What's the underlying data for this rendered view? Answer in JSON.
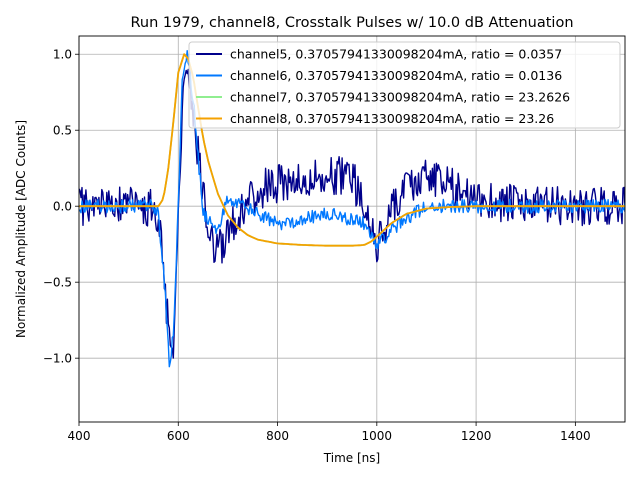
{
  "chart_data": {
    "type": "line",
    "title": "Run 1979, channel8, Crosstalk Pulses w/ 10.0 dB Attenuation",
    "xlabel": "Time [ns]",
    "ylabel": "Normalized Amplitude [ADC Counts]",
    "xlim": [
      400,
      1500
    ],
    "ylim": [
      -1.42,
      1.12
    ],
    "xticks": [
      400,
      600,
      800,
      1000,
      1200,
      1400
    ],
    "xtick_labels": [
      "400",
      "600",
      "800",
      "1000",
      "1200",
      "1400"
    ],
    "yticks": [
      -1.0,
      -0.5,
      0.0,
      0.5,
      1.0
    ],
    "ytick_labels": [
      "−1.0",
      "−0.5",
      "0.0",
      "0.5",
      "1.0"
    ],
    "grid": true,
    "legend_position": "top-right",
    "series": [
      {
        "name": "channel5, 0.37057941330098204mA, ratio = 0.0357",
        "color": "#00008b",
        "noise_amplitude": 0.13,
        "x": [
          400,
          540,
          560,
          575,
          585,
          592,
          600,
          610,
          620,
          640,
          660,
          680,
          720,
          760,
          800,
          850,
          900,
          950,
          1000,
          1050,
          1100,
          1200,
          1300,
          1400,
          1500
        ],
        "y": [
          0.0,
          0.0,
          -0.05,
          -0.6,
          -1.05,
          -0.9,
          0.0,
          0.85,
          0.9,
          0.35,
          -0.15,
          -0.3,
          -0.05,
          0.1,
          0.15,
          0.15,
          0.2,
          0.2,
          -0.25,
          0.1,
          0.2,
          0.05,
          0.0,
          0.0,
          0.0
        ]
      },
      {
        "name": "channel6, 0.37057941330098204mA, ratio = 0.0136",
        "color": "#0078ff",
        "noise_amplitude": 0.045,
        "x": [
          400,
          545,
          560,
          572,
          582,
          590,
          600,
          608,
          618,
          630,
          650,
          680,
          700,
          760,
          800,
          900,
          970,
          1000,
          1050,
          1100,
          1200,
          1500
        ],
        "y": [
          0.0,
          0.0,
          -0.05,
          -0.5,
          -1.05,
          -0.85,
          0.0,
          0.85,
          0.98,
          0.7,
          -0.05,
          -0.15,
          0.05,
          -0.05,
          -0.12,
          -0.05,
          -0.1,
          -0.25,
          -0.1,
          0.0,
          0.0,
          0.0
        ]
      },
      {
        "name": "channel7, 0.37057941330098204mA, ratio = 23.2626",
        "color": "#90ee90",
        "noise_amplitude": 0.0,
        "x": [
          400,
          560,
          570,
          580,
          590,
          600,
          612,
          620,
          630,
          640,
          650,
          660,
          680,
          700,
          720,
          740,
          760,
          800,
          850,
          900,
          950,
          975,
          990,
          1010,
          1030,
          1060,
          1100,
          1150,
          1200,
          1300,
          1500
        ],
        "y": [
          0.0,
          0.0,
          0.05,
          0.25,
          0.55,
          0.88,
          1.0,
          0.97,
          0.85,
          0.65,
          0.45,
          0.3,
          0.08,
          -0.06,
          -0.14,
          -0.19,
          -0.22,
          -0.245,
          -0.255,
          -0.26,
          -0.26,
          -0.255,
          -0.23,
          -0.17,
          -0.11,
          -0.05,
          -0.015,
          -0.005,
          0.0,
          0.0,
          0.0
        ]
      },
      {
        "name": "channel8, 0.37057941330098204mA, ratio = 23.26",
        "color": "#f5a100",
        "noise_amplitude": 0.0,
        "x": [
          400,
          560,
          570,
          580,
          590,
          600,
          612,
          620,
          630,
          640,
          650,
          660,
          680,
          700,
          720,
          740,
          760,
          800,
          850,
          900,
          950,
          975,
          990,
          1010,
          1030,
          1060,
          1100,
          1150,
          1200,
          1300,
          1500
        ],
        "y": [
          0.0,
          0.0,
          0.05,
          0.25,
          0.55,
          0.88,
          1.0,
          0.97,
          0.85,
          0.65,
          0.45,
          0.3,
          0.08,
          -0.06,
          -0.14,
          -0.19,
          -0.22,
          -0.245,
          -0.255,
          -0.26,
          -0.26,
          -0.255,
          -0.23,
          -0.17,
          -0.11,
          -0.05,
          -0.015,
          -0.005,
          0.0,
          0.0,
          0.0
        ]
      }
    ]
  }
}
